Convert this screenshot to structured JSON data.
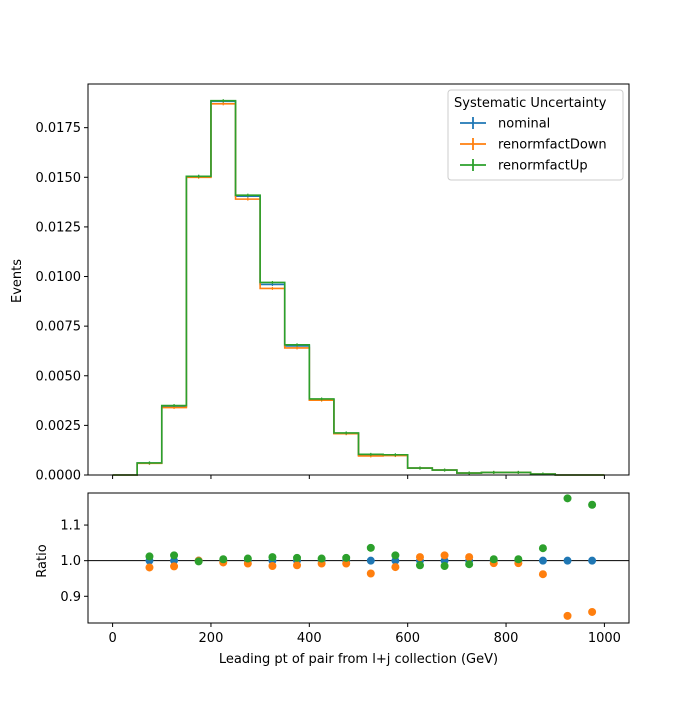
{
  "chart_data": [
    {
      "type": "line",
      "panel": "main",
      "ylabel": "Events",
      "xlim": [
        -50,
        1050
      ],
      "ylim": [
        0,
        0.0197
      ],
      "yticks": [
        0.0,
        0.0025,
        0.005,
        0.0075,
        0.01,
        0.0125,
        0.015,
        0.0175
      ],
      "ytick_labels": [
        "0.0000",
        "0.0025",
        "0.0050",
        "0.0075",
        "0.0100",
        "0.0125",
        "0.0150",
        "0.0175"
      ],
      "bin_edges": [
        0,
        50,
        100,
        150,
        200,
        250,
        300,
        350,
        400,
        450,
        500,
        550,
        600,
        650,
        700,
        750,
        800,
        850,
        900,
        950,
        1000
      ],
      "legend": {
        "title": "Systematic Uncertainty",
        "position": "top-right"
      },
      "series": [
        {
          "name": "nominal",
          "color": "#1f77b4",
          "values": [
            0.0,
            0.0006,
            0.00345,
            0.01505,
            0.01883,
            0.01405,
            0.0096,
            0.0065,
            0.0038,
            0.0021,
            0.001,
            0.001,
            0.00035,
            0.00025,
            0.0001,
            0.00013,
            0.00013,
            5e-05,
            0.0,
            0.0
          ]
        },
        {
          "name": "renormfactDown",
          "color": "#ff7f0e",
          "values": [
            0.0,
            0.00059,
            0.0034,
            0.015,
            0.0187,
            0.0139,
            0.0094,
            0.0064,
            0.00377,
            0.00208,
            0.00096,
            0.00098,
            0.00035,
            0.00025,
            0.0001,
            0.00013,
            0.00013,
            5e-05,
            0.0,
            0.0
          ]
        },
        {
          "name": "renormfactUp",
          "color": "#2ca02c",
          "values": [
            0.0,
            0.00061,
            0.0035,
            0.01505,
            0.01886,
            0.0141,
            0.0097,
            0.00656,
            0.00383,
            0.00212,
            0.00104,
            0.00102,
            0.00035,
            0.00025,
            0.0001,
            0.00013,
            0.00013,
            5e-05,
            0.0,
            0.0
          ]
        }
      ]
    },
    {
      "type": "scatter",
      "panel": "ratio",
      "xlabel": "Leading pt of pair from l+j collection (GeV)",
      "ylabel": "Ratio",
      "xlim": [
        -50,
        1050
      ],
      "ylim": [
        0.825,
        1.19
      ],
      "xticks": [
        0,
        200,
        400,
        600,
        800,
        1000
      ],
      "xtick_labels": [
        "0",
        "200",
        "400",
        "600",
        "800",
        "1000"
      ],
      "yticks": [
        0.9,
        1.0,
        1.1
      ],
      "ytick_labels": [
        "0.9",
        "1.0",
        "1.1"
      ],
      "reference_line": 1.0,
      "x": [
        75,
        125,
        175,
        225,
        275,
        325,
        375,
        425,
        475,
        525,
        575,
        625,
        675,
        725,
        775,
        825,
        875,
        925,
        975
      ],
      "series": [
        {
          "name": "nominal",
          "color": "#1f77b4",
          "values": [
            1.0,
            1.0,
            1.0,
            1.0,
            1.0,
            1.0,
            1.0,
            1.0,
            1.0,
            1.0,
            1.0,
            1.0,
            1.0,
            1.0,
            1.0,
            1.0,
            1.0,
            1.0,
            1.0
          ]
        },
        {
          "name": "renormfactDown",
          "color": "#ff7f0e",
          "values": [
            0.981,
            0.984,
            1.0,
            0.995,
            0.992,
            0.985,
            0.987,
            0.992,
            0.992,
            0.964,
            0.982,
            1.01,
            1.015,
            1.01,
            0.993,
            0.993,
            0.962,
            0.845,
            0.856
          ]
        },
        {
          "name": "renormfactUp",
          "color": "#2ca02c",
          "values": [
            1.012,
            1.015,
            0.998,
            1.004,
            1.006,
            1.01,
            1.008,
            1.006,
            1.008,
            1.036,
            1.015,
            0.987,
            0.985,
            0.99,
            1.004,
            1.004,
            1.035,
            1.175,
            1.157
          ]
        }
      ]
    }
  ]
}
